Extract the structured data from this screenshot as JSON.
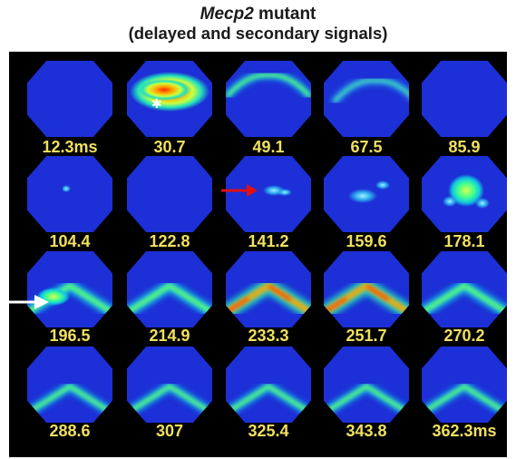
{
  "title": {
    "gene": "Mecp2",
    "rest": " mutant",
    "subtitle": "(delayed and secondary signals)"
  },
  "colors": {
    "background": "#000000",
    "hex_fill": "#1d2fd6",
    "label": "#f0e060",
    "red_arrow": "#e01010",
    "white_arrow": "#ffffff"
  },
  "frames": [
    {
      "label": "12.3ms",
      "activity": "none"
    },
    {
      "label": "30.7",
      "activity": "strong-arc-top"
    },
    {
      "label": "49.1",
      "activity": "weak-arc-top"
    },
    {
      "label": "67.5",
      "activity": "faint-arc-top"
    },
    {
      "label": "85.9",
      "activity": "none"
    },
    {
      "label": "104.4",
      "activity": "faint-spot"
    },
    {
      "label": "122.8",
      "activity": "none"
    },
    {
      "label": "141.2",
      "activity": "spot-center",
      "marker": "red-arrow"
    },
    {
      "label": "159.6",
      "activity": "spots"
    },
    {
      "label": "178.1",
      "activity": "cluster"
    },
    {
      "label": "196.5",
      "activity": "arc-left",
      "marker": "white-arrow"
    },
    {
      "label": "214.9",
      "activity": "arc-bottom"
    },
    {
      "label": "233.3",
      "activity": "arc-bottom-strong"
    },
    {
      "label": "251.7",
      "activity": "arc-bottom-strong"
    },
    {
      "label": "270.2",
      "activity": "arc-bottom"
    },
    {
      "label": "288.6",
      "activity": "arc-bottom-weak"
    },
    {
      "label": "307",
      "activity": "arc-bottom-weak"
    },
    {
      "label": "325.4",
      "activity": "arc-bottom-weak"
    },
    {
      "label": "343.8",
      "activity": "arc-bottom-weak"
    },
    {
      "label": "362.3ms",
      "activity": "arc-bottom-weak"
    }
  ]
}
